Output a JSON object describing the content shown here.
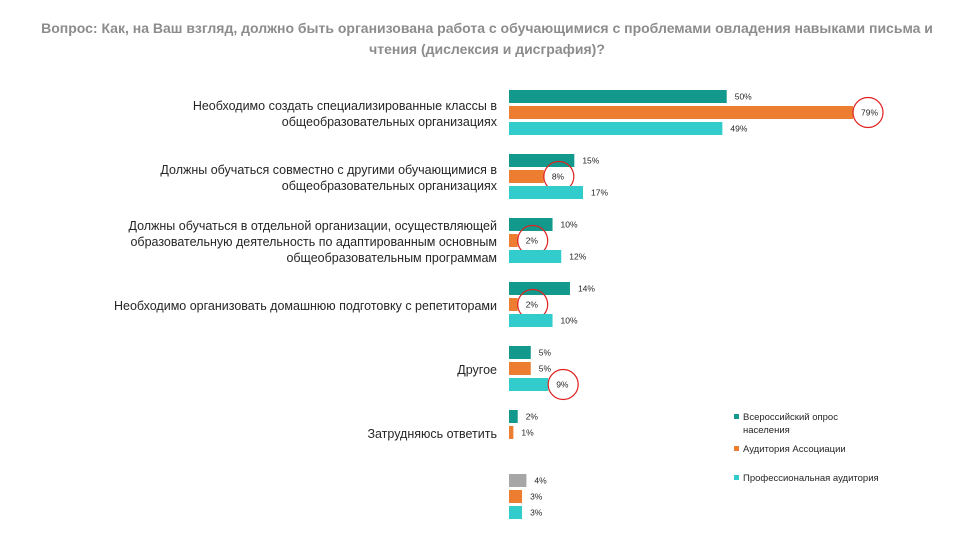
{
  "chart_data": {
    "type": "bar",
    "orientation": "horizontal",
    "title": "Вопрос: Как, на Ваш взгляд, должно быть организована работа с обучающимися с проблемами овладения навыками письма и чтения (дислексия и дисграфия)?",
    "categories": [
      [
        "Необходимо создать специализированные классы в",
        "общеобразовательных организациях"
      ],
      [
        "Должны обучаться совместно с другими обучающимися в",
        "общеобразовательных организациях"
      ],
      [
        "Должны обучаться в отдельной организации, осуществляющей",
        "образовательную деятельность по адаптированным основным",
        "общеобразовательным программам"
      ],
      [
        "Необходимо организовать домашнюю подготовку с репетиторами"
      ],
      [
        "Другое"
      ],
      [
        "Затрудняюсь ответить"
      ],
      [
        ""
      ]
    ],
    "series": [
      {
        "name": "Всероссийский опрос населения",
        "color": "#12998c",
        "values": [
          50,
          15,
          10,
          14,
          5,
          2,
          4
        ],
        "point_colors": [
          null,
          null,
          null,
          null,
          null,
          null,
          "#a6a6a6"
        ]
      },
      {
        "name": "Аудитория Ассоциации",
        "color": "#ed7d31",
        "values": [
          79,
          8,
          2,
          2,
          5,
          1,
          3
        ]
      },
      {
        "name": "Профессиональная аудитория",
        "color": "#33cccc",
        "values": [
          49,
          17,
          12,
          10,
          9,
          null,
          3
        ]
      }
    ],
    "value_suffix": "%",
    "highlighted": [
      {
        "series": 1,
        "category": 0
      },
      {
        "series": 1,
        "category": 1
      },
      {
        "series": 1,
        "category": 2
      },
      {
        "series": 1,
        "category": 3
      },
      {
        "series": 2,
        "category": 4
      }
    ],
    "highlight_color": "#e02020",
    "legend": {
      "position": "right",
      "lines": [
        [
          "Всероссийский опрос",
          "населения"
        ],
        [
          "Аудитория Ассоциации"
        ],
        [
          "Профессиональная аудитория"
        ]
      ]
    },
    "grid": false,
    "xlim": [
      0,
      100
    ]
  }
}
